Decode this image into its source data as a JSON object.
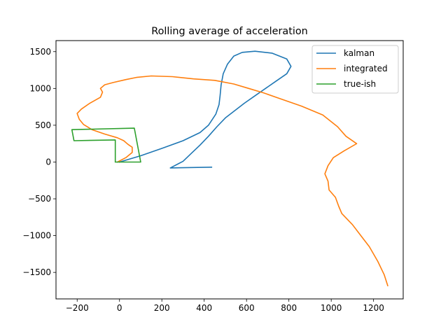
{
  "chart_data": {
    "type": "line",
    "title": "Rolling average of acceleration",
    "xlabel": "",
    "ylabel": "",
    "xlim": [
      -300,
      1340
    ],
    "ylim": [
      -1860,
      1650
    ],
    "xticks": [
      -200,
      0,
      200,
      400,
      600,
      800,
      1000,
      1200
    ],
    "yticks": [
      -1500,
      -1000,
      -500,
      0,
      500,
      1000,
      1500
    ],
    "xtick_labels": [
      "−200",
      "0",
      "200",
      "400",
      "600",
      "800",
      "1000",
      "1200"
    ],
    "ytick_labels": [
      "−1500",
      "−1000",
      "−500",
      "0",
      "500",
      "1000",
      "1500"
    ],
    "grid": false,
    "legend_position": "upper right",
    "series": [
      {
        "name": "kalman",
        "color": "#1f77b4",
        "points": [
          [
            0,
            0
          ],
          [
            100,
            85
          ],
          [
            200,
            185
          ],
          [
            300,
            290
          ],
          [
            380,
            400
          ],
          [
            420,
            500
          ],
          [
            455,
            650
          ],
          [
            470,
            780
          ],
          [
            475,
            900
          ],
          [
            480,
            1050
          ],
          [
            490,
            1200
          ],
          [
            510,
            1330
          ],
          [
            540,
            1440
          ],
          [
            580,
            1490
          ],
          [
            640,
            1505
          ],
          [
            720,
            1480
          ],
          [
            790,
            1400
          ],
          [
            810,
            1300
          ],
          [
            790,
            1200
          ],
          [
            740,
            1100
          ],
          [
            690,
            1000
          ],
          [
            640,
            900
          ],
          [
            590,
            800
          ],
          [
            545,
            700
          ],
          [
            500,
            600
          ],
          [
            460,
            480
          ],
          [
            420,
            350
          ],
          [
            380,
            230
          ],
          [
            340,
            120
          ],
          [
            300,
            10
          ],
          [
            240,
            -80
          ],
          [
            435,
            -70
          ]
        ]
      },
      {
        "name": "integrated",
        "color": "#ff7f0e",
        "points": [
          [
            -10,
            0
          ],
          [
            30,
            60
          ],
          [
            60,
            130
          ],
          [
            60,
            200
          ],
          [
            40,
            240
          ],
          [
            20,
            290
          ],
          [
            -10,
            330
          ],
          [
            -70,
            380
          ],
          [
            -130,
            440
          ],
          [
            -170,
            510
          ],
          [
            -190,
            580
          ],
          [
            -200,
            660
          ],
          [
            -180,
            720
          ],
          [
            -140,
            800
          ],
          [
            -90,
            880
          ],
          [
            -80,
            950
          ],
          [
            -90,
            1000
          ],
          [
            -70,
            1050
          ],
          [
            -30,
            1080
          ],
          [
            30,
            1120
          ],
          [
            80,
            1150
          ],
          [
            150,
            1170
          ],
          [
            250,
            1160
          ],
          [
            350,
            1130
          ],
          [
            450,
            1110
          ],
          [
            540,
            1060
          ],
          [
            610,
            1000
          ],
          [
            680,
            940
          ],
          [
            760,
            860
          ],
          [
            860,
            760
          ],
          [
            960,
            640
          ],
          [
            1030,
            480
          ],
          [
            1070,
            350
          ],
          [
            1120,
            250
          ],
          [
            1060,
            150
          ],
          [
            1010,
            60
          ],
          [
            985,
            -50
          ],
          [
            970,
            -160
          ],
          [
            985,
            -260
          ],
          [
            990,
            -380
          ],
          [
            1020,
            -480
          ],
          [
            1035,
            -600
          ],
          [
            1050,
            -700
          ],
          [
            1100,
            -850
          ],
          [
            1140,
            -1000
          ],
          [
            1180,
            -1150
          ],
          [
            1220,
            -1350
          ],
          [
            1250,
            -1530
          ],
          [
            1267,
            -1680
          ]
        ]
      },
      {
        "name": "true-ish",
        "color": "#2ca02c",
        "points": [
          [
            -20,
            0
          ],
          [
            100,
            0
          ],
          [
            70,
            460
          ],
          [
            -225,
            440
          ],
          [
            -215,
            290
          ],
          [
            -20,
            300
          ],
          [
            -20,
            0
          ]
        ]
      }
    ]
  }
}
